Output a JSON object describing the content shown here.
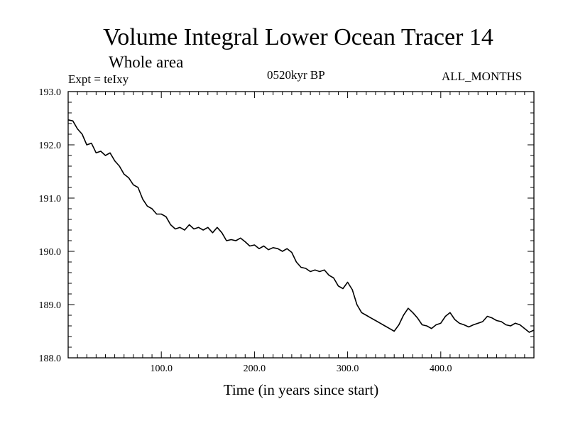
{
  "chart_data": {
    "type": "line",
    "title": "Volume Integral Lower Ocean Tracer 14",
    "subtitle": "Whole area",
    "annotations": {
      "left": "Expt = teIxy",
      "center": "0520kyr BP",
      "right": "ALL_MONTHS"
    },
    "xlabel": "Time (in years since start)",
    "ylabel": "",
    "xlim": [
      0,
      500
    ],
    "ylim": [
      188.0,
      193.0
    ],
    "xticks": [
      100,
      200,
      300,
      400
    ],
    "xtick_labels": [
      "100.0",
      "200.0",
      "300.0",
      "400.0"
    ],
    "yticks": [
      188,
      189,
      190,
      191,
      192,
      193
    ],
    "ytick_labels": [
      "188.0",
      "189.0",
      "190.0",
      "191.0",
      "192.0",
      "193.0"
    ],
    "grid": false,
    "series": [
      {
        "x": [
          0,
          5,
          10,
          15,
          20,
          25,
          30,
          35,
          40,
          45,
          50,
          55,
          60,
          65,
          70,
          75,
          80,
          85,
          90,
          95,
          100,
          105,
          110,
          115,
          120,
          125,
          130,
          135,
          140,
          145,
          150,
          155,
          160,
          165,
          170,
          175,
          180,
          185,
          190,
          195,
          200,
          205,
          210,
          215,
          220,
          225,
          230,
          235,
          240,
          245,
          250,
          255,
          260,
          265,
          270,
          275,
          280,
          285,
          290,
          295,
          300,
          305,
          310,
          315,
          320,
          325,
          330,
          335,
          340,
          345,
          350,
          355,
          360,
          365,
          370,
          375,
          380,
          385,
          390,
          395,
          400,
          405,
          410,
          415,
          420,
          425,
          430,
          435,
          440,
          445,
          450,
          455,
          460,
          465,
          470,
          475,
          480,
          485,
          490,
          495,
          500
        ],
        "y": [
          192.47,
          192.45,
          192.3,
          192.2,
          192.0,
          192.03,
          191.85,
          191.88,
          191.8,
          191.85,
          191.7,
          191.6,
          191.45,
          191.38,
          191.25,
          191.2,
          190.98,
          190.85,
          190.8,
          190.7,
          190.7,
          190.65,
          190.5,
          190.42,
          190.45,
          190.4,
          190.5,
          190.42,
          190.45,
          190.4,
          190.45,
          190.35,
          190.45,
          190.35,
          190.2,
          190.22,
          190.2,
          190.25,
          190.18,
          190.1,
          190.12,
          190.05,
          190.1,
          190.03,
          190.07,
          190.05,
          190.0,
          190.05,
          189.98,
          189.8,
          189.7,
          189.68,
          189.62,
          189.65,
          189.62,
          189.65,
          189.55,
          189.5,
          189.35,
          189.3,
          189.42,
          189.28,
          189.0,
          188.85,
          188.8,
          188.75,
          188.7,
          188.65,
          188.6,
          188.55,
          188.5,
          188.62,
          188.8,
          188.93,
          188.85,
          188.75,
          188.62,
          188.6,
          188.55,
          188.62,
          188.65,
          188.78,
          188.85,
          188.72,
          188.65,
          188.62,
          188.58,
          188.62,
          188.65,
          188.68,
          188.78,
          188.75,
          188.7,
          188.68,
          188.62,
          188.6,
          188.65,
          188.62,
          188.55,
          188.48,
          188.52
        ]
      }
    ]
  }
}
